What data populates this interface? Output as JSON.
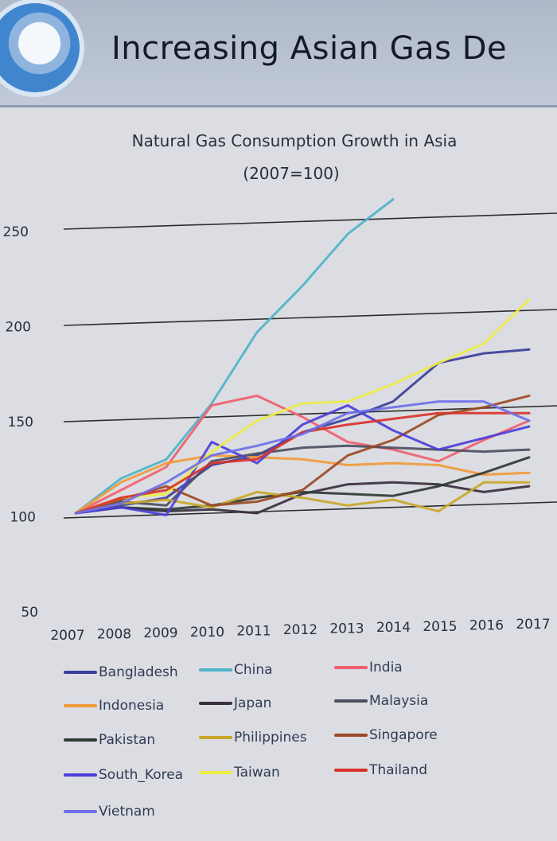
{
  "slide": {
    "title": "Increasing Asian Gas De"
  },
  "chart_data": {
    "type": "line",
    "title": "Natural Gas Consumption Growth in Asia",
    "subtitle": "(2007=100)",
    "x": [
      "2007",
      "2008",
      "2009",
      "2010",
      "2011",
      "2012",
      "2013",
      "2014",
      "2015",
      "2016",
      "2017"
    ],
    "y_ticks": [
      50,
      100,
      150,
      200,
      250
    ],
    "ylim": [
      50,
      250
    ],
    "grid": true,
    "legend": "bottom",
    "series": [
      {
        "name": "Bangladesh",
        "color": "#3a3f9a",
        "values": [
          100,
          104,
          108,
          125,
          130,
          142,
          149,
          158,
          178,
          183,
          185
        ]
      },
      {
        "name": "China",
        "color": "#4fb3c9",
        "values": [
          100,
          118,
          128,
          157,
          194,
          218,
          245,
          263,
          null,
          null,
          null
        ]
      },
      {
        "name": "India",
        "color": "#ef5f6f",
        "values": [
          100,
          112,
          124,
          156,
          161,
          150,
          137,
          133,
          127,
          138,
          148
        ]
      },
      {
        "name": "Indonesia",
        "color": "#f09a3a",
        "values": [
          100,
          116,
          126,
          130,
          129,
          128,
          125,
          126,
          125,
          120,
          121
        ]
      },
      {
        "name": "Japan",
        "color": "#3a2f3d",
        "values": [
          100,
          103,
          101,
          102,
          100,
          110,
          115,
          116,
          115,
          111,
          114
        ]
      },
      {
        "name": "Malaysia",
        "color": "#4b4e5f",
        "values": [
          100,
          106,
          104,
          127,
          131,
          134,
          135,
          134,
          133,
          132,
          133
        ]
      },
      {
        "name": "Pakistan",
        "color": "#2e3a33",
        "values": [
          100,
          103,
          102,
          104,
          108,
          111,
          110,
          109,
          114,
          121,
          129
        ]
      },
      {
        "name": "Philippines",
        "color": "#c9a62a",
        "values": [
          100,
          105,
          107,
          103,
          111,
          108,
          104,
          107,
          101,
          116,
          116
        ]
      },
      {
        "name": "Singapore",
        "color": "#9a4a25",
        "values": [
          100,
          107,
          114,
          104,
          106,
          112,
          130,
          138,
          151,
          155,
          161
        ]
      },
      {
        "name": "South_Korea",
        "color": "#4a3fd8",
        "values": [
          100,
          103,
          99,
          137,
          126,
          146,
          156,
          143,
          133,
          139,
          145
        ]
      },
      {
        "name": "Taiwan",
        "color": "#ecec45",
        "values": [
          100,
          108,
          110,
          132,
          148,
          157,
          158,
          167,
          178,
          188,
          211
        ]
      },
      {
        "name": "Thailand",
        "color": "#d8322a",
        "values": [
          100,
          108,
          112,
          126,
          128,
          142,
          146,
          149,
          152,
          152,
          152
        ]
      },
      {
        "name": "Vietnam",
        "color": "#6c70e8",
        "values": [
          100,
          105,
          116,
          130,
          135,
          141,
          152,
          155,
          158,
          158,
          148
        ]
      }
    ]
  }
}
